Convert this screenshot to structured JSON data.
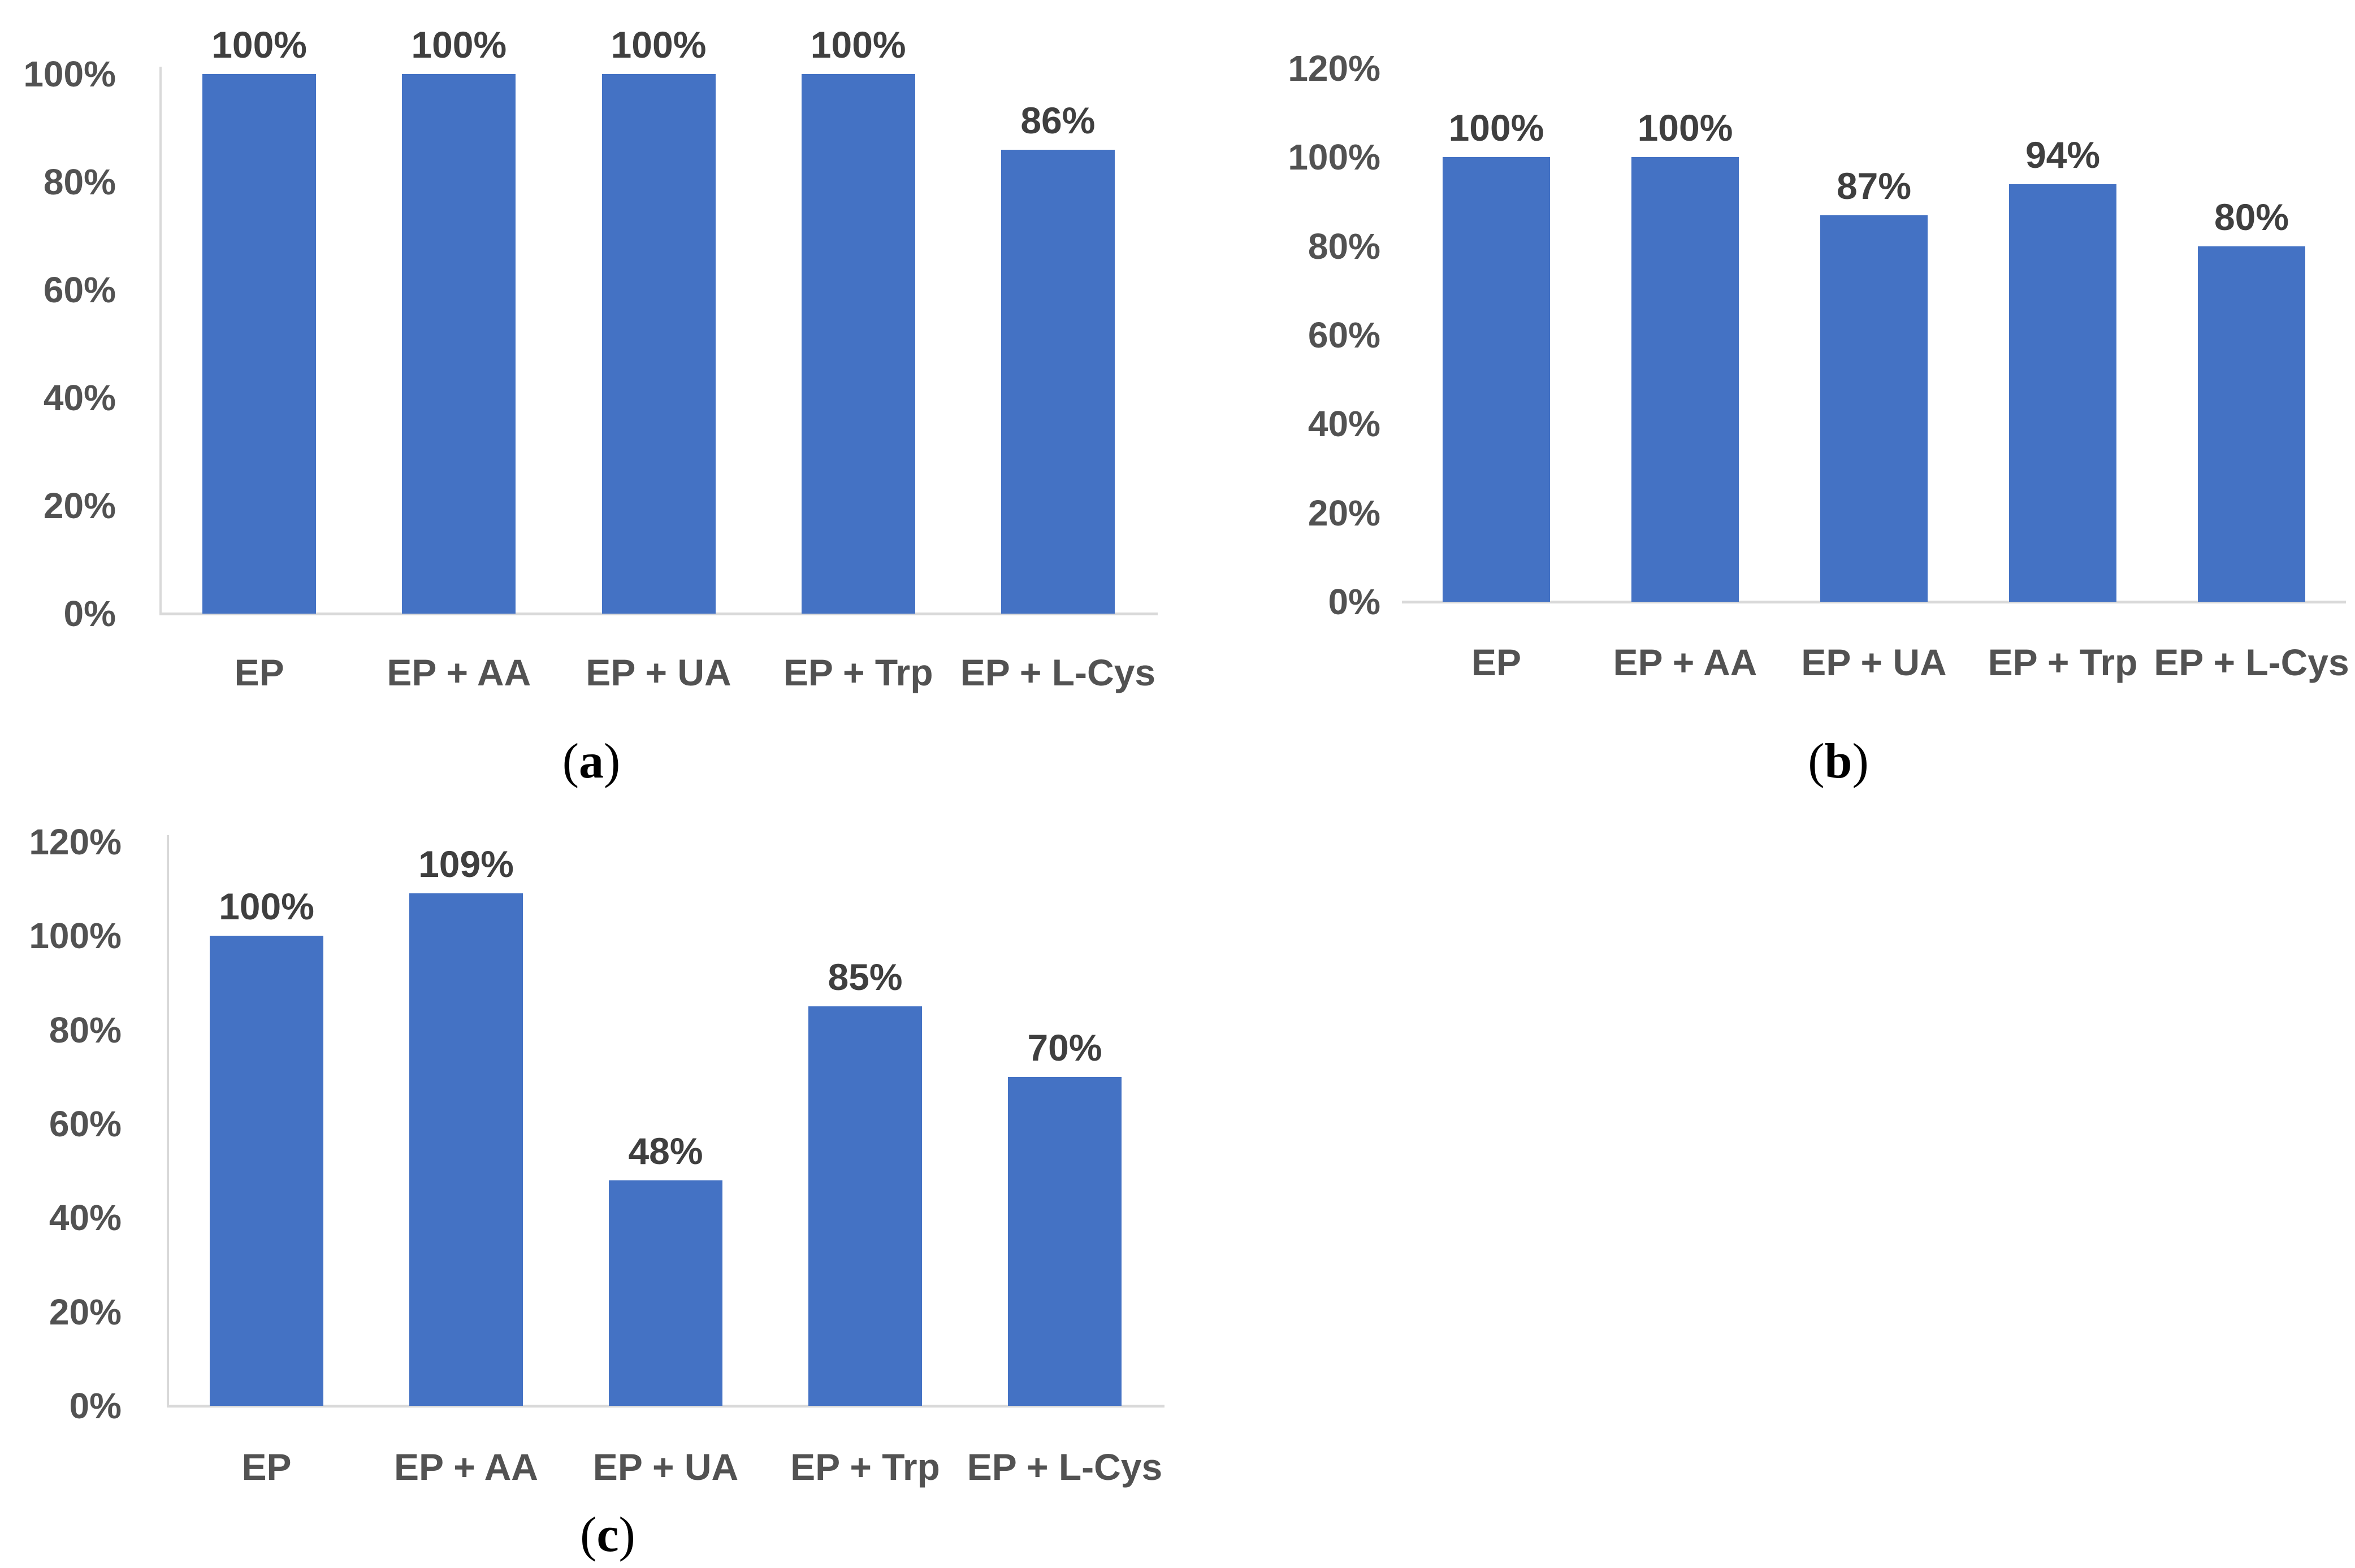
{
  "figure": {
    "background": "#ffffff",
    "colors": {
      "bar": "#4472c4",
      "axis_line": "#d9d9d9",
      "tick_label": "#525252",
      "value_label": "#3f3f3f",
      "caption": "#000000"
    },
    "captions": [
      {
        "open": "(",
        "letter": "a",
        "close": ")"
      },
      {
        "open": "(",
        "letter": "b",
        "close": ")"
      },
      {
        "open": "(",
        "letter": "c",
        "close": ")"
      }
    ]
  },
  "chart_data": [
    {
      "type": "bar",
      "panel": "a",
      "title": "",
      "xlabel": "",
      "ylabel": "",
      "categories": [
        "EP",
        "EP + AA",
        "EP + UA",
        "EP + Trp",
        "EP + L-Cys"
      ],
      "values": [
        100,
        100,
        100,
        100,
        86
      ],
      "value_labels": [
        "100%",
        "100%",
        "100%",
        "100%",
        "86%"
      ],
      "ylim": [
        0,
        100
      ],
      "ytick_values": [
        100,
        80,
        60,
        40,
        20,
        0
      ],
      "ytick_labels": [
        "100%",
        "80%",
        "60%",
        "40%",
        "20%",
        "0%"
      ],
      "grid": false,
      "legend": null,
      "y_axis_line": true
    },
    {
      "type": "bar",
      "panel": "b",
      "title": "",
      "xlabel": "",
      "ylabel": "",
      "categories": [
        "EP",
        "EP + AA",
        "EP + UA",
        "EP + Trp",
        "EP + L-Cys"
      ],
      "values": [
        100,
        100,
        87,
        94,
        80
      ],
      "value_labels": [
        "100%",
        "100%",
        "87%",
        "94%",
        "80%"
      ],
      "ylim": [
        0,
        120
      ],
      "ytick_values": [
        120,
        100,
        80,
        60,
        40,
        20,
        0
      ],
      "ytick_labels": [
        "120%",
        "100%",
        "80%",
        "60%",
        "40%",
        "20%",
        "0%"
      ],
      "grid": false,
      "legend": null,
      "y_axis_line": false
    },
    {
      "type": "bar",
      "panel": "c",
      "title": "",
      "xlabel": "",
      "ylabel": "",
      "categories": [
        "EP",
        "EP + AA",
        "EP + UA",
        "EP + Trp",
        "EP + L-Cys"
      ],
      "values": [
        100,
        109,
        48,
        85,
        70
      ],
      "value_labels": [
        "100%",
        "109%",
        "48%",
        "85%",
        "70%"
      ],
      "ylim": [
        0,
        120
      ],
      "ytick_values": [
        120,
        100,
        80,
        60,
        40,
        20,
        0
      ],
      "ytick_labels": [
        "120%",
        "100%",
        "80%",
        "60%",
        "40%",
        "20%",
        "0%"
      ],
      "grid": false,
      "legend": null,
      "y_axis_line": true
    }
  ]
}
